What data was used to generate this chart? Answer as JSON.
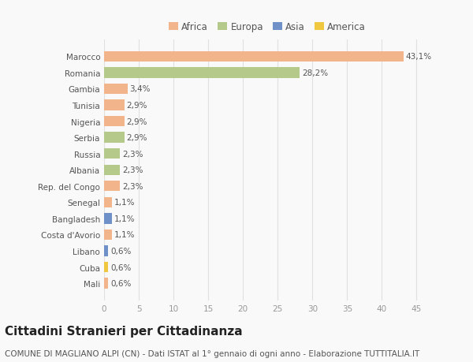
{
  "countries": [
    "Marocco",
    "Romania",
    "Gambia",
    "Tunisia",
    "Nigeria",
    "Serbia",
    "Russia",
    "Albania",
    "Rep. del Congo",
    "Senegal",
    "Bangladesh",
    "Costa d'Avorio",
    "Libano",
    "Cuba",
    "Mali"
  ],
  "values": [
    43.1,
    28.2,
    3.4,
    2.9,
    2.9,
    2.9,
    2.3,
    2.3,
    2.3,
    1.1,
    1.1,
    1.1,
    0.6,
    0.6,
    0.6
  ],
  "labels": [
    "43,1%",
    "28,2%",
    "3,4%",
    "2,9%",
    "2,9%",
    "2,9%",
    "2,3%",
    "2,3%",
    "2,3%",
    "1,1%",
    "1,1%",
    "1,1%",
    "0,6%",
    "0,6%",
    "0,6%"
  ],
  "colors": [
    "#f2b48a",
    "#b5c98a",
    "#f2b48a",
    "#f2b48a",
    "#f2b48a",
    "#b5c98a",
    "#b5c98a",
    "#b5c98a",
    "#f2b48a",
    "#f2b48a",
    "#7090c8",
    "#f2b48a",
    "#7090c8",
    "#f0c840",
    "#f2b48a"
  ],
  "legend_labels": [
    "Africa",
    "Europa",
    "Asia",
    "America"
  ],
  "legend_colors": [
    "#f2b48a",
    "#b5c98a",
    "#7090c8",
    "#f0c840"
  ],
  "title": "Cittadini Stranieri per Cittadinanza",
  "subtitle": "COMUNE DI MAGLIANO ALPI (CN) - Dati ISTAT al 1° gennaio di ogni anno - Elaborazione TUTTITALIA.IT",
  "xlim": [
    0,
    47
  ],
  "xticks": [
    0,
    5,
    10,
    15,
    20,
    25,
    30,
    35,
    40,
    45
  ],
  "background_color": "#f9f9f9",
  "grid_color": "#e0e0e0",
  "bar_height": 0.65,
  "title_fontsize": 11,
  "subtitle_fontsize": 7.5,
  "label_fontsize": 7.5,
  "tick_fontsize": 7.5,
  "legend_fontsize": 8.5
}
